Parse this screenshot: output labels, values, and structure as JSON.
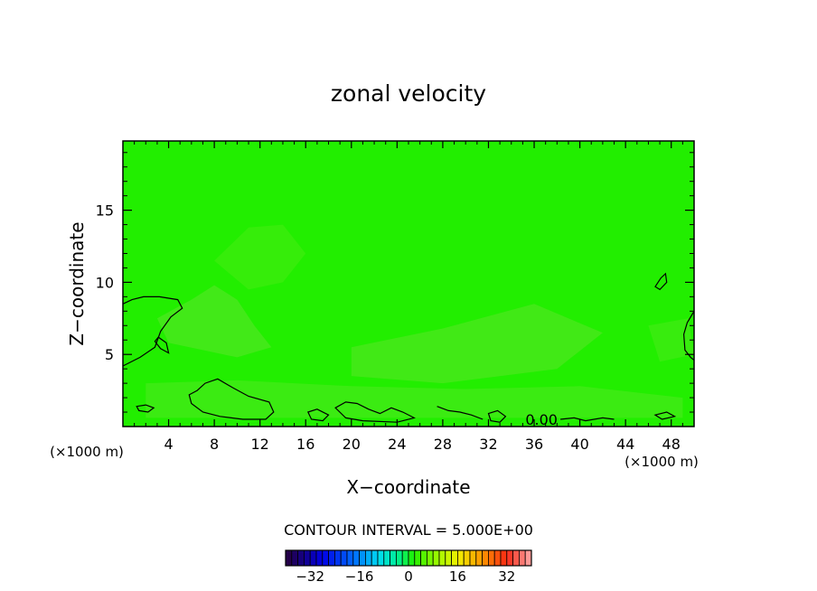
{
  "chart_data": {
    "type": "contour",
    "title": "zonal velocity",
    "xlabel": "X−coordinate",
    "ylabel": "Z−coordinate",
    "x_unit_left": "(×1000 m)",
    "x_unit_right": "(×1000 m)",
    "xlim": [
      0,
      50
    ],
    "ylim": [
      0,
      19.8
    ],
    "x_ticks": [
      4,
      8,
      12,
      16,
      20,
      24,
      28,
      32,
      36,
      40,
      44,
      48
    ],
    "x_tick_labels": [
      "4",
      "8",
      "12",
      "16",
      "20",
      "24",
      "28",
      "32",
      "36",
      "40",
      "44",
      "48"
    ],
    "y_ticks": [
      5,
      10,
      15
    ],
    "y_tick_labels": [
      "5",
      "10",
      "15"
    ],
    "field_background_color": "#22ee00",
    "contour_label": "0.00",
    "contour_label_position": [
      36.5,
      0.5
    ],
    "contour_interval_text": "CONTOUR INTERVAL = 5.000E+00",
    "colorbar": {
      "min": -40,
      "max": 40,
      "step": 2,
      "tick_values": [
        -32,
        -16,
        0,
        16,
        32
      ],
      "tick_labels": [
        "−32",
        "−16",
        "0",
        "16",
        "32"
      ]
    },
    "shaded_regions": [
      {
        "name": "band-mid-left",
        "color": "#48e81c",
        "points": [
          [
            3,
            7.5
          ],
          [
            6,
            8.8
          ],
          [
            8,
            9.8
          ],
          [
            10,
            8.8
          ],
          [
            11.5,
            7
          ],
          [
            13,
            5.5
          ],
          [
            10,
            4.8
          ],
          [
            7,
            5.3
          ],
          [
            4,
            5.8
          ]
        ]
      },
      {
        "name": "band-upper-left",
        "color": "#39ec0c",
        "points": [
          [
            8,
            11.5
          ],
          [
            11,
            13.8
          ],
          [
            14,
            14
          ],
          [
            16,
            12
          ],
          [
            14,
            10
          ],
          [
            11,
            9.5
          ]
        ]
      },
      {
        "name": "band-center",
        "color": "#46e81a",
        "points": [
          [
            20,
            5.5
          ],
          [
            28,
            6.8
          ],
          [
            36,
            8.5
          ],
          [
            42,
            6.5
          ],
          [
            38,
            4
          ],
          [
            28,
            3
          ],
          [
            20,
            3.5
          ]
        ]
      },
      {
        "name": "band-bottom",
        "color": "#40ea15",
        "points": [
          [
            2,
            3
          ],
          [
            10,
            3.2
          ],
          [
            20,
            2.8
          ],
          [
            30,
            2.6
          ],
          [
            40,
            2.8
          ],
          [
            49,
            2
          ],
          [
            49,
            0.6
          ],
          [
            2,
            0.6
          ]
        ]
      },
      {
        "name": "band-right-mid",
        "color": "#3ceb10",
        "points": [
          [
            46,
            7
          ],
          [
            49.5,
            7.5
          ],
          [
            50,
            5
          ],
          [
            47,
            4.5
          ]
        ]
      }
    ],
    "contour_lines": [
      {
        "name": "zero-contour-left-upper",
        "closed": false,
        "points": [
          [
            0,
            4.2
          ],
          [
            1.5,
            4.8
          ],
          [
            2.8,
            5.5
          ],
          [
            3.3,
            6.6
          ],
          [
            4.2,
            7.6
          ],
          [
            5.2,
            8.2
          ],
          [
            4.8,
            8.8
          ],
          [
            3.2,
            9.0
          ],
          [
            1.8,
            9.0
          ],
          [
            0.8,
            8.8
          ],
          [
            0,
            8.5
          ]
        ]
      },
      {
        "name": "zero-contour-left-blob",
        "closed": true,
        "points": [
          [
            2.8,
            5.9
          ],
          [
            3.3,
            5.4
          ],
          [
            4.0,
            5.1
          ],
          [
            3.8,
            5.8
          ],
          [
            3.1,
            6.2
          ]
        ]
      },
      {
        "name": "zero-contour-near-surface-1",
        "closed": true,
        "points": [
          [
            5.8,
            2.2
          ],
          [
            6.5,
            2.5
          ],
          [
            7.2,
            3.0
          ],
          [
            8.3,
            3.3
          ],
          [
            9.6,
            2.7
          ],
          [
            11,
            2.1
          ],
          [
            12.8,
            1.7
          ],
          [
            13.2,
            1.0
          ],
          [
            12.5,
            0.5
          ],
          [
            10.5,
            0.5
          ],
          [
            8.5,
            0.7
          ],
          [
            7.0,
            1.0
          ],
          [
            6.0,
            1.6
          ]
        ]
      },
      {
        "name": "zero-contour-near-surface-2",
        "closed": true,
        "points": [
          [
            1.2,
            1.4
          ],
          [
            2.0,
            1.5
          ],
          [
            2.7,
            1.3
          ],
          [
            2.2,
            1.0
          ],
          [
            1.4,
            1.1
          ]
        ]
      },
      {
        "name": "zero-contour-near-surface-3",
        "closed": true,
        "points": [
          [
            16.2,
            1.0
          ],
          [
            17.0,
            1.2
          ],
          [
            18.0,
            0.8
          ],
          [
            17.5,
            0.4
          ],
          [
            16.5,
            0.5
          ]
        ]
      },
      {
        "name": "zero-contour-near-surface-4",
        "closed": true,
        "points": [
          [
            18.6,
            1.3
          ],
          [
            19.5,
            1.7
          ],
          [
            20.5,
            1.6
          ],
          [
            21.5,
            1.2
          ],
          [
            22.5,
            0.9
          ],
          [
            23.5,
            1.3
          ],
          [
            24.5,
            1.0
          ],
          [
            25.5,
            0.6
          ],
          [
            24,
            0.3
          ],
          [
            21,
            0.4
          ],
          [
            19.5,
            0.6
          ]
        ]
      },
      {
        "name": "zero-contour-near-surface-5",
        "closed": false,
        "points": [
          [
            27.5,
            1.4
          ],
          [
            28.5,
            1.1
          ],
          [
            29.5,
            1.0
          ],
          [
            30.5,
            0.8
          ],
          [
            31.5,
            0.5
          ]
        ]
      },
      {
        "name": "zero-contour-near-surface-6",
        "closed": true,
        "points": [
          [
            32.0,
            0.9
          ],
          [
            32.8,
            1.1
          ],
          [
            33.5,
            0.7
          ],
          [
            33.0,
            0.3
          ],
          [
            32.2,
            0.4
          ]
        ]
      },
      {
        "name": "zero-contour-near-surface-7",
        "closed": false,
        "points": [
          [
            38.3,
            0.5
          ],
          [
            39.5,
            0.6
          ],
          [
            40.5,
            0.4
          ],
          [
            42,
            0.6
          ],
          [
            43,
            0.5
          ]
        ]
      },
      {
        "name": "zero-contour-right-blob",
        "closed": true,
        "points": [
          [
            46.6,
            9.7
          ],
          [
            47.1,
            10.3
          ],
          [
            47.5,
            10.6
          ],
          [
            47.6,
            10.0
          ],
          [
            47.0,
            9.5
          ]
        ]
      },
      {
        "name": "zero-contour-right-small",
        "closed": true,
        "points": [
          [
            46.6,
            0.8
          ],
          [
            47.6,
            1.0
          ],
          [
            48.3,
            0.7
          ],
          [
            47.2,
            0.5
          ]
        ]
      },
      {
        "name": "zero-contour-right-edge",
        "closed": false,
        "points": [
          [
            50,
            8.0
          ],
          [
            49.4,
            7.2
          ],
          [
            49.1,
            6.4
          ],
          [
            49.2,
            5.3
          ],
          [
            49.7,
            4.8
          ],
          [
            50,
            4.6
          ]
        ]
      }
    ]
  }
}
